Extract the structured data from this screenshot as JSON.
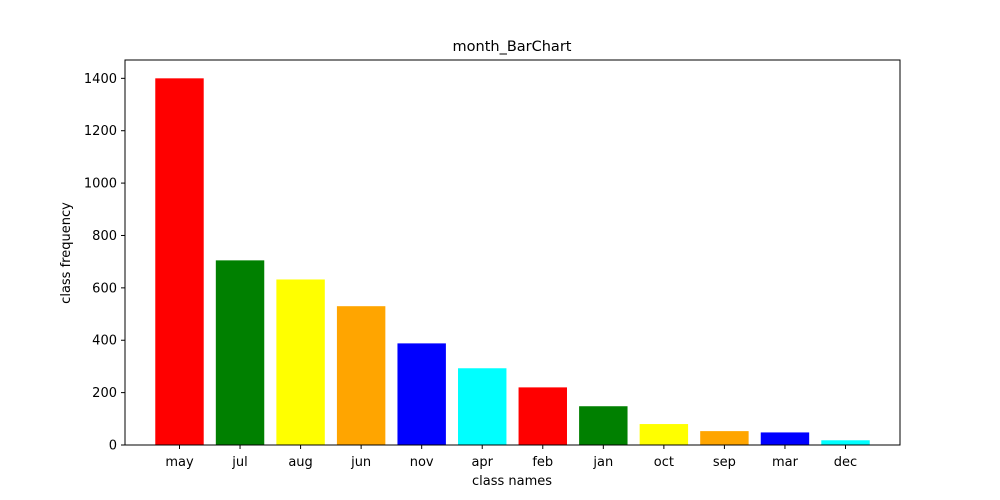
{
  "chart_data": {
    "type": "bar",
    "title": "month_BarChart",
    "xlabel": "class names",
    "ylabel": "class frequency",
    "categories": [
      "may",
      "jul",
      "aug",
      "jun",
      "nov",
      "apr",
      "feb",
      "jan",
      "oct",
      "sep",
      "mar",
      "dec"
    ],
    "values": [
      1400,
      705,
      632,
      530,
      388,
      293,
      220,
      148,
      80,
      53,
      48,
      18
    ],
    "colors": [
      "#ff0000",
      "#008000",
      "#ffff00",
      "#ffa500",
      "#0000ff",
      "#00ffff",
      "#ff0000",
      "#008000",
      "#ffff00",
      "#ffa500",
      "#0000ff",
      "#00ffff"
    ],
    "ylim": [
      0,
      1470
    ],
    "yticks": [
      0,
      200,
      400,
      600,
      800,
      1000,
      1200,
      1400
    ],
    "grid": false,
    "legend": "none"
  }
}
